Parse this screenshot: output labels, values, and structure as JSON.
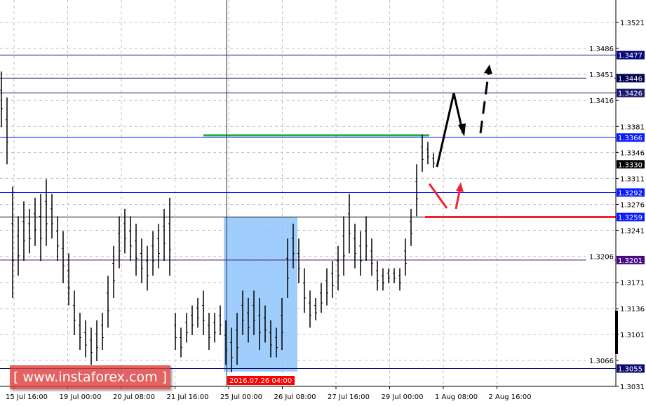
{
  "chart_data": {
    "type": "bar",
    "style": "ohlc-bars",
    "colors": {
      "bars": "#000000",
      "grid": "#c0c0c0",
      "zone": "#8ec5fb",
      "green_level": "#22aa44",
      "red_level": "#ee2233",
      "label_blue": "#0a1aff",
      "label_navy": "#0a0a70"
    },
    "y_ticks": [
      "1.3521",
      "1.3486",
      "1.3451",
      "1.3416",
      "1.3381",
      "1.3346",
      "1.3311",
      "1.3276",
      "1.3241",
      "1.3206",
      "1.3171",
      "1.3136",
      "1.3101",
      "1.3066",
      "1.3031"
    ],
    "ylim": [
      1.3018,
      1.3551
    ],
    "x_ticks": [
      "15 Jul 16:00",
      "19 Jul 00:00",
      "20 Jul 08:00",
      "21 Jul 16:00",
      "25 Jul 00:00",
      "26 Jul 08:00",
      "27 Jul 16:00",
      "29 Jul 00:00",
      "1 Aug 08:00",
      "2 Aug 16:00"
    ],
    "crosshair_label": "2016.07.26 04:00",
    "current_price": "1.3330",
    "levels": [
      {
        "price": "1.3477",
        "color": "#0a0a80"
      },
      {
        "price": "1.3446",
        "color": "#000050"
      },
      {
        "price": "1.3426",
        "color": "#1a1a70"
      },
      {
        "price": "1.3366",
        "color": "#0a1aff"
      },
      {
        "price": "1.3292",
        "color": "#0a1aff"
      },
      {
        "price": "1.3259",
        "color": "#0a1aff"
      },
      {
        "price": "1.3201",
        "color": "#4a0a80"
      },
      {
        "price": "1.3055",
        "color": "#0a0a70"
      }
    ],
    "bars": [
      [
        1.3455,
        1.338
      ],
      [
        1.342,
        1.333
      ],
      [
        1.33,
        1.315
      ],
      [
        1.326,
        1.318
      ],
      [
        1.328,
        1.32
      ],
      [
        1.327,
        1.321
      ],
      [
        1.3285,
        1.322
      ],
      [
        1.329,
        1.32
      ],
      [
        1.331,
        1.322
      ],
      [
        1.329,
        1.323
      ],
      [
        1.326,
        1.32
      ],
      [
        1.324,
        1.317
      ],
      [
        1.321,
        1.314
      ],
      [
        1.316,
        1.31
      ],
      [
        1.313,
        1.308
      ],
      [
        1.312,
        1.307
      ],
      [
        1.311,
        1.306
      ],
      [
        1.312,
        1.3065
      ],
      [
        1.313,
        1.308
      ],
      [
        1.318,
        1.311
      ],
      [
        1.322,
        1.315
      ],
      [
        1.326,
        1.319
      ],
      [
        1.327,
        1.321
      ],
      [
        1.326,
        1.32
      ],
      [
        1.325,
        1.318
      ],
      [
        1.323,
        1.317
      ],
      [
        1.322,
        1.316
      ],
      [
        1.324,
        1.318
      ],
      [
        1.325,
        1.319
      ],
      [
        1.327,
        1.32
      ],
      [
        1.3285,
        1.318
      ],
      [
        1.313,
        1.308
      ],
      [
        1.311,
        1.307
      ],
      [
        1.313,
        1.309
      ],
      [
        1.314,
        1.31
      ],
      [
        1.315,
        1.311
      ],
      [
        1.316,
        1.31
      ],
      [
        1.313,
        1.308
      ],
      [
        1.313,
        1.309
      ],
      [
        1.314,
        1.31
      ],
      [
        1.312,
        1.306
      ],
      [
        1.311,
        1.305
      ],
      [
        1.313,
        1.306
      ],
      [
        1.316,
        1.31
      ],
      [
        1.315,
        1.309
      ],
      [
        1.316,
        1.31
      ],
      [
        1.315,
        1.308
      ],
      [
        1.314,
        1.309
      ],
      [
        1.312,
        1.307
      ],
      [
        1.311,
        1.307
      ],
      [
        1.315,
        1.308
      ],
      [
        1.323,
        1.315
      ],
      [
        1.325,
        1.319
      ],
      [
        1.323,
        1.317
      ],
      [
        1.319,
        1.313
      ],
      [
        1.316,
        1.311
      ],
      [
        1.315,
        1.312
      ],
      [
        1.317,
        1.313
      ],
      [
        1.319,
        1.314
      ],
      [
        1.32,
        1.315
      ],
      [
        1.322,
        1.316
      ],
      [
        1.326,
        1.318
      ],
      [
        1.329,
        1.321
      ],
      [
        1.325,
        1.319
      ],
      [
        1.324,
        1.318
      ],
      [
        1.326,
        1.32
      ],
      [
        1.323,
        1.318
      ],
      [
        1.32,
        1.316
      ],
      [
        1.319,
        1.316
      ],
      [
        1.319,
        1.317
      ],
      [
        1.319,
        1.317
      ],
      [
        1.319,
        1.316
      ],
      [
        1.323,
        1.318
      ],
      [
        1.327,
        1.322
      ],
      [
        1.333,
        1.326
      ],
      [
        1.337,
        1.332
      ],
      [
        1.336,
        1.333
      ],
      [
        1.3345,
        1.3325
      ]
    ]
  },
  "watermark": "[ www.instaforex.com ]"
}
